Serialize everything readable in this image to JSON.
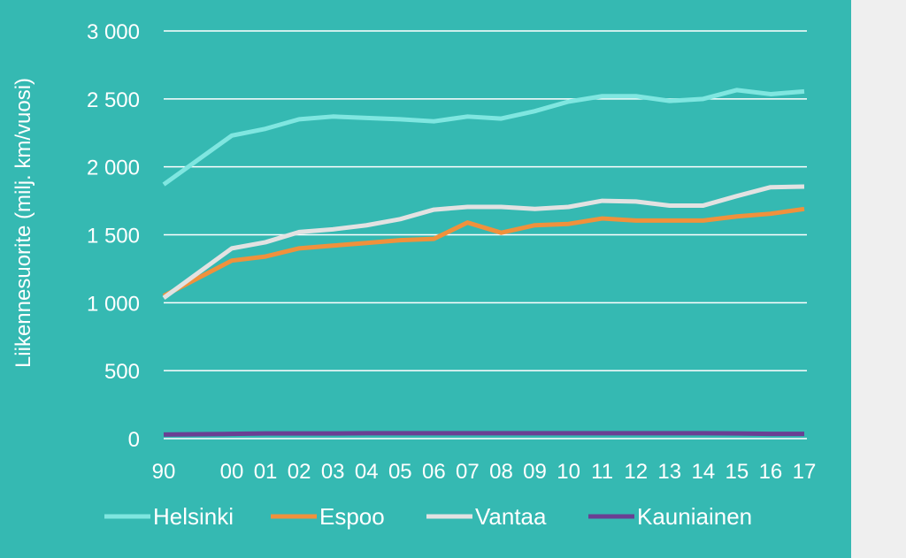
{
  "chart_data": {
    "type": "line",
    "ylabel": "Liikennesuorite (milj. km/vuosi)",
    "xlabel": "",
    "ylim": [
      0,
      3000
    ],
    "yticks": [
      0,
      500,
      1000,
      1500,
      2000,
      2500,
      3000
    ],
    "ytick_labels": [
      "0",
      "500",
      "1 000",
      "1 500",
      "2 000",
      "2 500",
      "3 000"
    ],
    "grid": true,
    "legend_position": "bottom",
    "x": [
      1990,
      2000,
      2001,
      2002,
      2003,
      2004,
      2005,
      2006,
      2007,
      2008,
      2009,
      2010,
      2011,
      2012,
      2013,
      2014,
      2015,
      2016,
      2017
    ],
    "x_labels": [
      "90",
      "00",
      "01",
      "02",
      "03",
      "04",
      "05",
      "06",
      "07",
      "08",
      "09",
      "10",
      "11",
      "12",
      "13",
      "14",
      "15",
      "16",
      "17"
    ],
    "series": [
      {
        "name": "Helsinki",
        "color": "#7fe6e0",
        "values": [
          1870,
          2230,
          2280,
          2350,
          2370,
          2360,
          2350,
          2335,
          2370,
          2355,
          2410,
          2480,
          2520,
          2520,
          2485,
          2500,
          2565,
          2535,
          2555
        ]
      },
      {
        "name": "Espoo",
        "color": "#f0913c",
        "values": [
          1050,
          1310,
          1340,
          1400,
          1420,
          1440,
          1460,
          1470,
          1590,
          1515,
          1570,
          1580,
          1620,
          1605,
          1605,
          1605,
          1635,
          1655,
          1690
        ]
      },
      {
        "name": "Vantaa",
        "color": "#e2e2e2",
        "values": [
          1035,
          1400,
          1445,
          1520,
          1540,
          1570,
          1615,
          1685,
          1705,
          1705,
          1690,
          1705,
          1750,
          1745,
          1715,
          1715,
          1785,
          1850,
          1855
        ]
      },
      {
        "name": "Kauniainen",
        "color": "#6a3f93",
        "values": [
          30,
          35,
          38,
          38,
          38,
          40,
          40,
          40,
          40,
          40,
          40,
          40,
          40,
          40,
          40,
          40,
          38,
          35,
          35
        ]
      }
    ]
  }
}
